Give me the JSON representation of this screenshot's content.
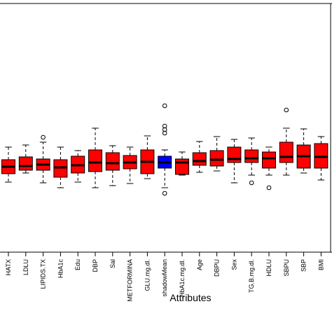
{
  "chart_data": {
    "type": "box",
    "xlabel": "Attributes",
    "categories": [
      "HATX",
      "LDLU",
      "LIPIDS.TX",
      "HbA1c",
      "Edu",
      "DBP",
      "Sal",
      "METFORMINA",
      "GLU.mg.dl.",
      "shadowMean",
      "HbA1c.mg.dl.",
      "Age",
      "DBPU",
      "Sex",
      "TG.B.mg.dl.",
      "HDLU",
      "SBPU",
      "SBP",
      "BMI"
    ],
    "colors": [
      "#ff0000",
      "#ff0000",
      "#ff0000",
      "#ff0000",
      "#ff0000",
      "#ff0000",
      "#ff0000",
      "#ff0000",
      "#ff0000",
      "#0000ff",
      "#ff0000",
      "#ff0000",
      "#ff0000",
      "#ff0000",
      "#ff0000",
      "#ff0000",
      "#ff0000",
      "#ff0000",
      "#ff0000"
    ],
    "min": [
      100,
      113,
      99,
      92,
      100,
      92,
      95,
      98,
      105,
      92,
      110,
      114,
      116,
      99,
      110,
      110,
      110,
      113,
      103
    ],
    "q1": [
      112,
      117,
      117,
      107,
      113,
      115,
      117,
      119,
      112,
      120,
      111,
      124,
      123,
      128,
      128,
      120,
      128,
      120,
      120
    ],
    "median": [
      122,
      123,
      125,
      121,
      124,
      128,
      127,
      128,
      129,
      128,
      128,
      130,
      132,
      133,
      134,
      134,
      136,
      137,
      136
    ],
    "q3": [
      132,
      136,
      133,
      132,
      137,
      146,
      142,
      138,
      146,
      137,
      133,
      142,
      145,
      150,
      146,
      143,
      157,
      153,
      155
    ],
    "max": [
      150,
      153,
      157,
      150,
      145,
      177,
      152,
      150,
      166,
      146,
      143,
      158,
      165,
      161,
      163,
      150,
      177,
      176,
      165
    ],
    "outliers": [
      [],
      [],
      [
        164
      ],
      [],
      [],
      [],
      [],
      [],
      [],
      [
        209,
        180,
        175,
        170,
        84
      ],
      [],
      [],
      [],
      [],
      [
        99
      ],
      [
        92
      ],
      [
        203
      ],
      [],
      []
    ],
    "ylim": [
      0,
      355
    ]
  }
}
